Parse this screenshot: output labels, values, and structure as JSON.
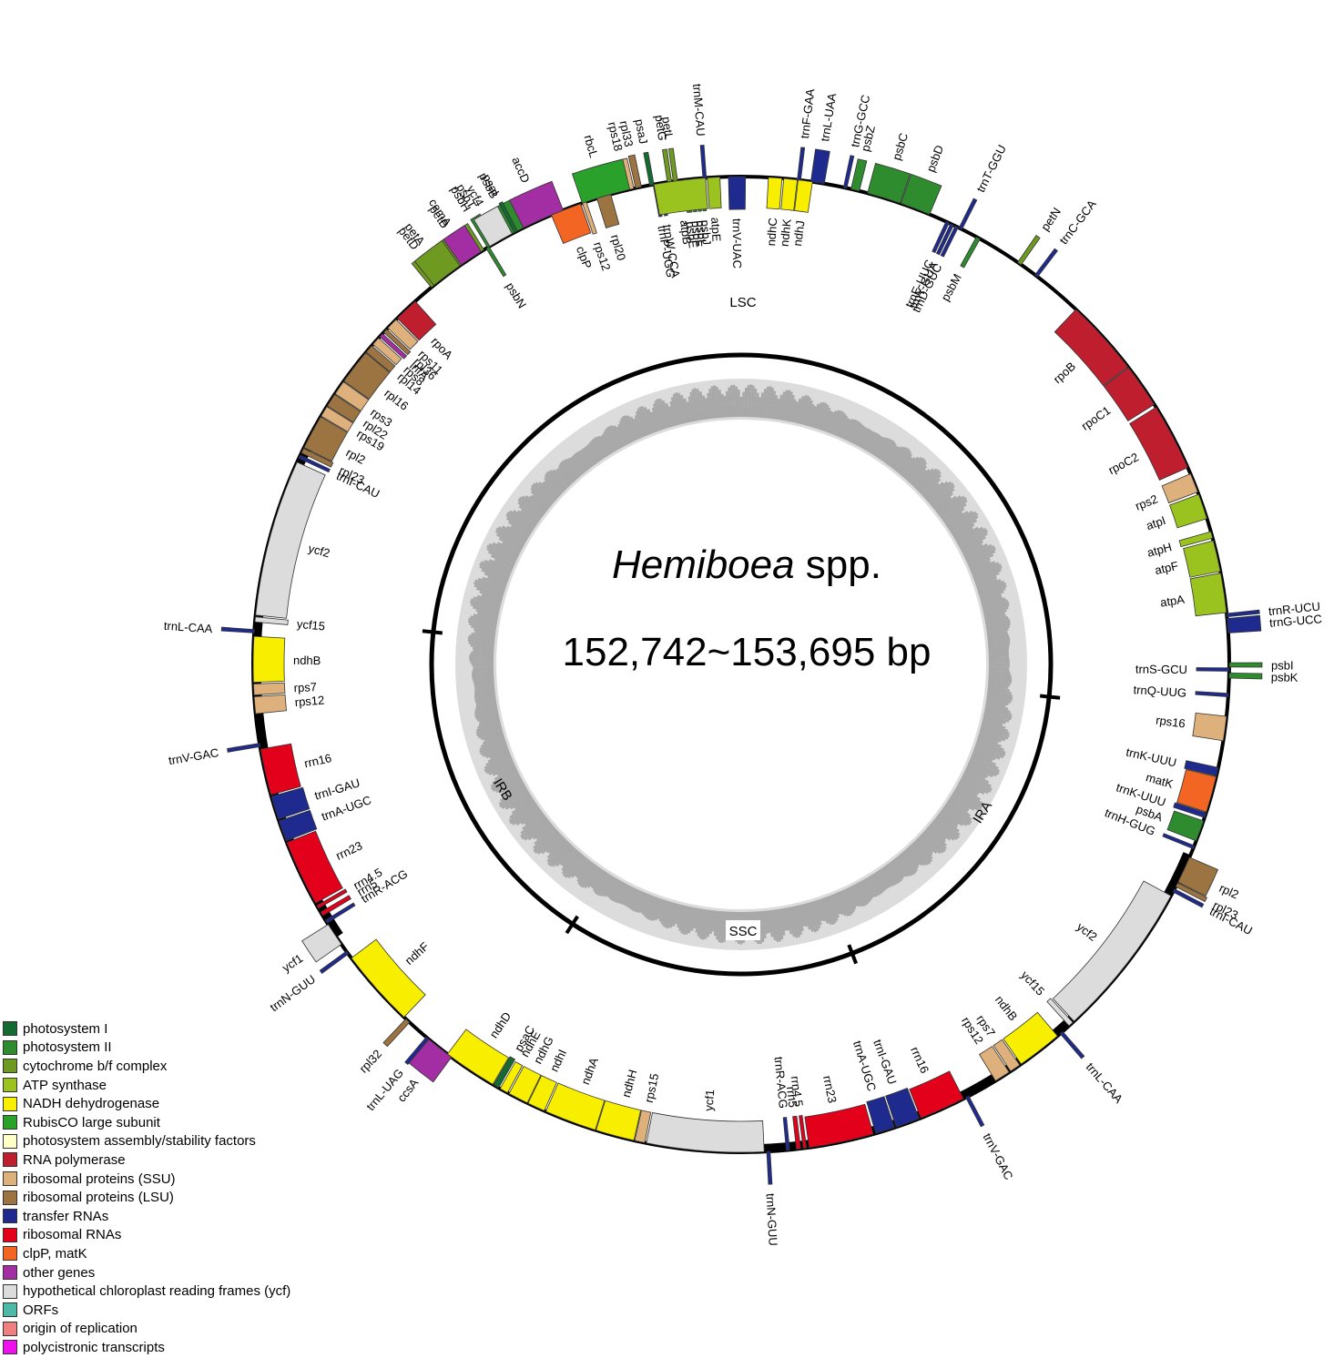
{
  "title": {
    "genus": "Hemiboea",
    "suffix": " spp.",
    "size": "152,742~153,695 bp"
  },
  "regions": {
    "lsc": "LSC",
    "ira": "IRA",
    "ssc": "SSC",
    "irb": "IRB"
  },
  "colors": {
    "photosystem_I": "#146b32",
    "photosystem_II": "#2e8b2e",
    "cytochrome": "#6f9a22",
    "atp": "#9bc320",
    "ndh": "#f7ee00",
    "rubisco": "#2aa12a",
    "assembly": "#ffffc8",
    "rnapol": "#be1e2d",
    "rps": "#deb07c",
    "rpl": "#9b7442",
    "trna": "#1f2a8f",
    "rrna": "#e3001b",
    "clpmat": "#f26522",
    "other": "#a32ea3",
    "ycf": "#dcdcdc",
    "orf": "#4fb9a8",
    "ori": "#f08080",
    "poly": "#ee11ee"
  },
  "legend": [
    {
      "label": "photosystem I",
      "color": "#146b32"
    },
    {
      "label": "photosystem II",
      "color": "#2e8b2e"
    },
    {
      "label": "cytochrome b/f complex",
      "color": "#6f9a22"
    },
    {
      "label": "ATP synthase",
      "color": "#9bc320"
    },
    {
      "label": "NADH dehydrogenase",
      "color": "#f7ee00"
    },
    {
      "label": "RubisCO large subunit",
      "color": "#2aa12a"
    },
    {
      "label": "photosystem assembly/stability factors",
      "color": "#ffffc8"
    },
    {
      "label": "RNA polymerase",
      "color": "#be1e2d"
    },
    {
      "label": "ribosomal proteins (SSU)",
      "color": "#deb07c"
    },
    {
      "label": "ribosomal proteins (LSU)",
      "color": "#9b7442"
    },
    {
      "label": "transfer RNAs",
      "color": "#1f2a8f"
    },
    {
      "label": "ribosomal RNAs",
      "color": "#e3001b"
    },
    {
      "label": "clpP, matK",
      "color": "#f26522"
    },
    {
      "label": "other genes",
      "color": "#a32ea3"
    },
    {
      "label": "hypothetical chloroplast reading frames (ycf)",
      "color": "#dcdcdc"
    },
    {
      "label": "ORFs",
      "color": "#4fb9a8"
    },
    {
      "label": "origin of replication",
      "color": "#f08080"
    },
    {
      "label": "polycistronic transcripts",
      "color": "#ee11ee"
    }
  ],
  "genes": [
    {
      "name": "trnG-GCC",
      "cat": "trna",
      "a1": 12.1,
      "a2": 12.5,
      "side": "out"
    },
    {
      "name": "psbZ",
      "cat": "photosystem_II",
      "a1": 13.0,
      "a2": 14.0,
      "side": "out"
    },
    {
      "name": "psbC",
      "cat": "photosystem_II",
      "a1": 15.0,
      "a2": 19.0,
      "side": "out"
    },
    {
      "name": "psbD",
      "cat": "photosystem_II",
      "a1": 19.1,
      "a2": 22.7,
      "side": "out"
    },
    {
      "name": "trnT-GGU",
      "cat": "trna",
      "a1": 26.5,
      "a2": 26.9,
      "side": "out"
    },
    {
      "name": "petN",
      "cat": "cytochrome",
      "a1": 34.5,
      "a2": 35.0,
      "side": "out"
    },
    {
      "name": "trnC-GCA",
      "cat": "trna",
      "a1": 37.0,
      "a2": 37.4,
      "side": "out"
    },
    {
      "name": "trnE-UUC",
      "cat": "trna",
      "a1": 24.8,
      "a2": 25.2,
      "side": "in"
    },
    {
      "name": "trnY-GUA",
      "cat": "trna",
      "a1": 25.4,
      "a2": 25.8,
      "side": "in"
    },
    {
      "name": "trnD-GUC",
      "cat": "trna",
      "a1": 26.0,
      "a2": 26.4,
      "side": "in"
    },
    {
      "name": "psbM",
      "cat": "photosystem_II",
      "a1": 28.8,
      "a2": 29.3,
      "side": "in"
    },
    {
      "name": "rpoB",
      "cat": "rnapol",
      "a1": 43.3,
      "a2": 52.4,
      "side": "in"
    },
    {
      "name": "rpoC1",
      "cat": "rnapol",
      "a1": 52.5,
      "a2": 57.8,
      "side": "in"
    },
    {
      "name": "rpoC2",
      "cat": "rnapol",
      "a1": 58.2,
      "a2": 66.2,
      "side": "in"
    },
    {
      "name": "rps2",
      "cat": "rps",
      "a1": 67.0,
      "a2": 69.3,
      "side": "in"
    },
    {
      "name": "atpI",
      "cat": "atp",
      "a1": 69.6,
      "a2": 72.6,
      "side": "in"
    },
    {
      "name": "atpH",
      "cat": "atp",
      "a1": 74.2,
      "a2": 75.0,
      "side": "in"
    },
    {
      "name": "atpF",
      "cat": "atp",
      "a1": 75.3,
      "a2": 79.0,
      "side": "in"
    },
    {
      "name": "atpA",
      "cat": "atp",
      "a1": 79.2,
      "a2": 83.9,
      "side": "in"
    },
    {
      "name": "trnR-UCU",
      "cat": "trna",
      "a1": 84.0,
      "a2": 84.4,
      "side": "out"
    },
    {
      "name": "trnG-UCC",
      "cat": "trna",
      "a1": 84.6,
      "a2": 86.3,
      "side": "out"
    },
    {
      "name": "psbI",
      "cat": "photosystem_II",
      "a1": 89.8,
      "a2": 90.3,
      "side": "out"
    },
    {
      "name": "psbK",
      "cat": "photosystem_II",
      "a1": 91.0,
      "a2": 91.6,
      "side": "out"
    },
    {
      "name": "trnS-GCU",
      "cat": "trna",
      "a1": 90.4,
      "a2": 90.8,
      "side": "in"
    },
    {
      "name": "trnQ-UUG",
      "cat": "trna",
      "a1": 93.4,
      "a2": 93.8,
      "side": "in"
    },
    {
      "name": "rps16",
      "cat": "rps",
      "a1": 96.1,
      "a2": 99.0,
      "side": "in"
    },
    {
      "name": "trnK-UUU",
      "cat": "trna",
      "a1": 102.2,
      "a2": 103.2,
      "side": "in"
    },
    {
      "name": "matK",
      "cat": "clpmat",
      "a1": 103.3,
      "a2": 107.6,
      "side": "in"
    },
    {
      "name": "trnK-UUU",
      "cat": "trna",
      "a1": 107.7,
      "a2": 108.3,
      "side": "in"
    },
    {
      "name": "psbA",
      "cat": "photosystem_II",
      "a1": 108.7,
      "a2": 111.2,
      "side": "in"
    },
    {
      "name": "trnH-GUG",
      "cat": "trna",
      "a1": 111.8,
      "a2": 112.2,
      "side": "in"
    },
    {
      "name": "rpl2",
      "cat": "rpl",
      "a1": 113.3,
      "a2": 116.5,
      "side": "out"
    },
    {
      "name": "rpl23",
      "cat": "rpl",
      "a1": 116.6,
      "a2": 117.1,
      "side": "out"
    },
    {
      "name": "trnI-CAU",
      "cat": "trna",
      "a1": 117.4,
      "a2": 117.8,
      "side": "out"
    },
    {
      "name": "ycf2",
      "cat": "ycf",
      "a1": 118.3,
      "a2": 137.0,
      "side": "in"
    },
    {
      "name": "ycf15",
      "cat": "ycf",
      "a1": 137.2,
      "a2": 137.8,
      "side": "in"
    },
    {
      "name": "trnL-CAA",
      "cat": "trna",
      "a1": 138.8,
      "a2": 139.2,
      "side": "out"
    },
    {
      "name": "ndhB",
      "cat": "ndh",
      "a1": 139.6,
      "a2": 145.0,
      "side": "in"
    },
    {
      "name": "rps7",
      "cat": "rps",
      "a1": 145.2,
      "a2": 146.5,
      "side": "in"
    },
    {
      "name": "rps12",
      "cat": "rps",
      "a1": 146.7,
      "a2": 148.6,
      "side": "in"
    },
    {
      "name": "trnV-GAC",
      "cat": "trna",
      "a1": 152.2,
      "a2": 152.6,
      "side": "out"
    },
    {
      "name": "rrn16",
      "cat": "rrna",
      "a1": 152.9,
      "a2": 158.4,
      "side": "in"
    },
    {
      "name": "trnI-GAU",
      "cat": "trna",
      "a1": 158.6,
      "a2": 161.5,
      "side": "in"
    },
    {
      "name": "trnA-UGC",
      "cat": "trna",
      "a1": 161.7,
      "a2": 164.0,
      "side": "in"
    },
    {
      "name": "rrn23",
      "cat": "rrna",
      "a1": 164.3,
      "a2": 172.0,
      "side": "in"
    },
    {
      "name": "rrn4.5",
      "cat": "rrna",
      "a1": 172.3,
      "a2": 172.7,
      "side": "in"
    },
    {
      "name": "rrn5",
      "cat": "rrna",
      "a1": 173.0,
      "a2": 173.5,
      "side": "in"
    },
    {
      "name": "trnR-ACG",
      "cat": "trna",
      "a1": 174.3,
      "a2": 174.7,
      "side": "in"
    },
    {
      "name": "trnN-GUU",
      "cat": "trna",
      "a1": 176.6,
      "a2": 177.0,
      "side": "out"
    },
    {
      "name": "ycf1",
      "cat": "ycf",
      "a1": 177.3,
      "a2": 191.2,
      "side": "in"
    },
    {
      "name": "rps15",
      "cat": "rps",
      "a1": 191.4,
      "a2": 192.6,
      "side": "in"
    },
    {
      "name": "ndhH",
      "cat": "ndh",
      "a1": 192.7,
      "a2": 197.3,
      "side": "in"
    },
    {
      "name": "ndhA",
      "cat": "ndh",
      "a1": 197.4,
      "a2": 203.6,
      "side": "in"
    },
    {
      "name": "ndhI",
      "cat": "ndh",
      "a1": 203.8,
      "a2": 205.9,
      "side": "in"
    },
    {
      "name": "ndhG",
      "cat": "ndh",
      "a1": 206.0,
      "a2": 208.4,
      "side": "in"
    },
    {
      "name": "ndhE",
      "cat": "ndh",
      "a1": 208.6,
      "a2": 209.6,
      "side": "in"
    },
    {
      "name": "psaC",
      "cat": "photosystem_I",
      "a1": 209.8,
      "a2": 210.5,
      "side": "in"
    },
    {
      "name": "ndhD",
      "cat": "ndh",
      "a1": 210.6,
      "a2": 217.0,
      "side": "in"
    },
    {
      "name": "ccsA",
      "cat": "other",
      "a1": 216.4,
      "a2": 219.8,
      "side": "out"
    },
    {
      "name": "trnL-UAG",
      "cat": "trna",
      "a1": 219.8,
      "a2": 220.2,
      "side": "out"
    },
    {
      "name": "rpl32",
      "cat": "rpl",
      "a1": 222.8,
      "a2": 223.4,
      "side": "out"
    },
    {
      "name": "ndhF",
      "cat": "ndh",
      "a1": 223.7,
      "a2": 233.0,
      "side": "in"
    },
    {
      "name": "trnN-GUU",
      "cat": "trna",
      "a1": 233.6,
      "a2": 234.0,
      "side": "out"
    },
    {
      "name": "ycf1",
      "cat": "ycf",
      "a1": 235.0,
      "a2": 237.8,
      "side": "out"
    },
    {
      "name": "trnR-ACG",
      "cat": "trna",
      "a1": 238.0,
      "a2": 238.4,
      "side": "in"
    },
    {
      "name": "rrn5",
      "cat": "rrna",
      "a1": 239.0,
      "a2": 239.5,
      "side": "in"
    },
    {
      "name": "rrn4.5",
      "cat": "rrna",
      "a1": 240.0,
      "a2": 240.4,
      "side": "in"
    },
    {
      "name": "rrn23",
      "cat": "rrna",
      "a1": 240.7,
      "a2": 248.6,
      "side": "in"
    },
    {
      "name": "trnA-UGC",
      "cat": "trna",
      "a1": 248.8,
      "a2": 251.3,
      "side": "in"
    },
    {
      "name": "trnI-GAU",
      "cat": "trna",
      "a1": 251.5,
      "a2": 254.3,
      "side": "in"
    },
    {
      "name": "rrn16",
      "cat": "rrna",
      "a1": 254.5,
      "a2": 260.0,
      "side": "in"
    },
    {
      "name": "trnV-GAC",
      "cat": "trna",
      "a1": 260.3,
      "a2": 260.7,
      "side": "out"
    },
    {
      "name": "rps12",
      "cat": "rps",
      "a1": 264.2,
      "a2": 266.2,
      "side": "in"
    },
    {
      "name": "rps7",
      "cat": "rps",
      "a1": 266.4,
      "a2": 267.7,
      "side": "in"
    },
    {
      "name": "ndhB",
      "cat": "ndh",
      "a1": 267.9,
      "a2": 273.3,
      "side": "in"
    },
    {
      "name": "trnL-CAA",
      "cat": "trna",
      "a1": 273.7,
      "a2": 274.1,
      "side": "out"
    },
    {
      "name": "ycf15",
      "cat": "ycf",
      "a1": 275.0,
      "a2": 275.6,
      "side": "in"
    },
    {
      "name": "ycf2",
      "cat": "ycf",
      "a1": 275.8,
      "a2": 294.5,
      "side": "in"
    },
    {
      "name": "trnI-CAU",
      "cat": "trna",
      "a1": 295.0,
      "a2": 295.4,
      "side": "in"
    },
    {
      "name": "rpl23",
      "cat": "rpl",
      "a1": 295.7,
      "a2": 296.3,
      "side": "in"
    },
    {
      "name": "rpl2",
      "cat": "rpl",
      "a1": 296.4,
      "a2": 300.5,
      "side": "in"
    },
    {
      "name": "rps19",
      "cat": "rps",
      "a1": 300.6,
      "a2": 301.9,
      "side": "in"
    },
    {
      "name": "rpl22",
      "cat": "rpl",
      "a1": 302.0,
      "a2": 303.6,
      "side": "in"
    },
    {
      "name": "rps3",
      "cat": "rps",
      "a1": 303.7,
      "a2": 305.4,
      "side": "in"
    },
    {
      "name": "rpl16",
      "cat": "rpl",
      "a1": 305.5,
      "a2": 309.7,
      "side": "in"
    },
    {
      "name": "rpl14",
      "cat": "rpl",
      "a1": 309.8,
      "a2": 310.8,
      "side": "in"
    },
    {
      "name": "rps8",
      "cat": "rps",
      "a1": 311.0,
      "a2": 312.0,
      "side": "in"
    },
    {
      "name": "infA",
      "cat": "other",
      "a1": 312.2,
      "a2": 312.7,
      "side": "in"
    },
    {
      "name": "rpl36",
      "cat": "rpl",
      "a1": 312.9,
      "a2": 313.4,
      "side": "in"
    },
    {
      "name": "rps11",
      "cat": "rps",
      "a1": 313.6,
      "a2": 315.0,
      "side": "in"
    },
    {
      "name": "rpoA",
      "cat": "rnapol",
      "a1": 315.2,
      "a2": 318.1,
      "side": "in"
    },
    {
      "name": "petD",
      "cat": "cytochrome",
      "a1": 320.6,
      "a2": 323.6,
      "side": "out"
    },
    {
      "name": "petB",
      "cat": "cytochrome",
      "a1": 323.9,
      "a2": 328.2,
      "side": "out"
    },
    {
      "name": "psbN",
      "cat": "photosystem_II",
      "a1": 328.5,
      "a2": 328.9,
      "side": "in"
    },
    {
      "name": "psbH",
      "cat": "photosystem_II",
      "a1": 328.7,
      "a2": 329.3,
      "side": "out"
    },
    {
      "name": "psbT",
      "cat": "photosystem_II",
      "a1": 329.4,
      "a2": 329.9,
      "side": "out"
    },
    {
      "name": "psbB",
      "cat": "photosystem_II",
      "a1": 330.2,
      "a2": 334.3,
      "side": "out"
    },
    {
      "name": "clpP",
      "cat": "clpmat",
      "a1": 337.1,
      "a2": 340.8,
      "side": "in"
    },
    {
      "name": "rps12",
      "cat": "rps",
      "a1": 341.0,
      "a2": 341.5,
      "side": "in"
    },
    {
      "name": "rpl20",
      "cat": "rpl",
      "a1": 342.8,
      "a2": 344.5,
      "side": "in"
    },
    {
      "name": "rps18",
      "cat": "rps",
      "a1": 346.0,
      "a2": 347.3,
      "side": "out"
    },
    {
      "name": "rpl33",
      "cat": "rpl",
      "a1": 347.5,
      "a2": 348.2,
      "side": "out"
    },
    {
      "name": "psaJ",
      "cat": "photosystem_I",
      "a1": 349.2,
      "a2": 349.7,
      "side": "out"
    },
    {
      "name": "trnP-UGG",
      "cat": "trna",
      "a1": 349.6,
      "a2": 350.0,
      "side": "in"
    },
    {
      "name": "trnW-CCA",
      "cat": "trna",
      "a1": 350.3,
      "a2": 350.7,
      "side": "in"
    },
    {
      "name": "petG",
      "cat": "cytochrome",
      "a1": 351.3,
      "a2": 351.8,
      "side": "out"
    },
    {
      "name": "petL",
      "cat": "cytochrome",
      "a1": 352.0,
      "a2": 352.5,
      "side": "out"
    },
    {
      "name": "psbE",
      "cat": "photosystem_II",
      "a1": 353.2,
      "a2": 353.8,
      "side": "in"
    },
    {
      "name": "psbF",
      "cat": "photosystem_II",
      "a1": 354.0,
      "a2": 354.4,
      "side": "in"
    },
    {
      "name": "psbL",
      "cat": "photosystem_II",
      "a1": 354.6,
      "a2": 355.0,
      "side": "in"
    },
    {
      "name": "psbJ",
      "cat": "photosystem_II",
      "a1": 355.2,
      "a2": 355.6,
      "side": "in"
    },
    {
      "name": "petA",
      "cat": "cytochrome",
      "a1": 321.0,
      "a2": 324.8,
      "side": "out2"
    },
    {
      "name": "cemA",
      "cat": "other",
      "a1": 325.0,
      "a2": 327.8,
      "side": "out2"
    },
    {
      "name": "ycf4",
      "cat": "ycf",
      "a1": 329.0,
      "a2": 332.0,
      "side": "out2"
    },
    {
      "name": "psaI",
      "cat": "photosystem_I",
      "a1": 332.3,
      "a2": 332.7,
      "side": "out2"
    },
    {
      "name": "accD",
      "cat": "other",
      "a1": 333.5,
      "a2": 338.6,
      "side": "out2"
    },
    {
      "name": "rbcL",
      "cat": "rubisco",
      "a1": 341.0,
      "a2": 346.8,
      "side": "out2"
    },
    {
      "name": "atpB",
      "cat": "atp",
      "a1": 349.7,
      "a2": 355.8,
      "side": "in2"
    },
    {
      "name": "atpE",
      "cat": "atp",
      "a1": 356.0,
      "a2": 357.5,
      "side": "in2"
    },
    {
      "name": "trnV-UAC",
      "cat": "trna",
      "a1": 358.5,
      "a2": 360.5,
      "side": "in2"
    },
    {
      "name": "trnM-CAU",
      "cat": "trna",
      "a1": 355.5,
      "a2": 355.9,
      "side": "out2"
    },
    {
      "name": "ndhC",
      "cat": "ndh",
      "a1": 363.2,
      "a2": 364.8,
      "side": "in2"
    },
    {
      "name": "ndhK",
      "cat": "ndh",
      "a1": 365.0,
      "a2": 366.6,
      "side": "in2"
    },
    {
      "name": "ndhJ",
      "cat": "ndh",
      "a1": 366.7,
      "a2": 368.4,
      "side": "in2"
    },
    {
      "name": "trnF-GAA",
      "cat": "trna",
      "a1": 366.6,
      "a2": 367.0,
      "side": "out2"
    },
    {
      "name": "trnL-UAA",
      "cat": "trna",
      "a1": 368.2,
      "a2": 369.8,
      "side": "out2"
    }
  ],
  "extra_labels": [
    {
      "name": "trnT-UGU"
    },
    {
      "name": "rps4"
    },
    {
      "name": "trnS-GGA"
    },
    {
      "name": "ycf3"
    },
    {
      "name": "psaA"
    },
    {
      "name": "psaB"
    },
    {
      "name": "rps14"
    },
    {
      "name": "trnfM-CAU"
    },
    {
      "name": "trnS-UGA"
    }
  ]
}
